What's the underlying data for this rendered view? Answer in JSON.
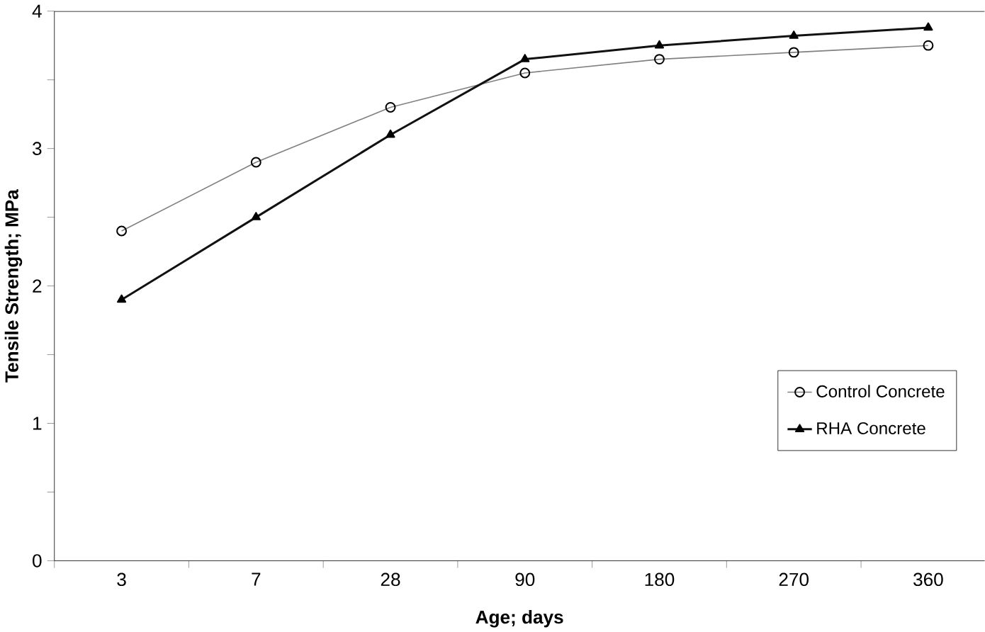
{
  "chart_data": {
    "type": "line",
    "xlabel": "Age; days",
    "ylabel": "Tensile Strength; MPa",
    "categories": [
      "3",
      "7",
      "28",
      "90",
      "180",
      "270",
      "360"
    ],
    "series": [
      {
        "name": "Control Concrete",
        "color": "#808080",
        "marker": "circle",
        "values": [
          2.4,
          2.9,
          3.3,
          3.55,
          3.65,
          3.7,
          3.75
        ]
      },
      {
        "name": "RHA Concrete",
        "color": "#111111",
        "marker": "triangle",
        "values": [
          1.9,
          2.5,
          3.1,
          3.65,
          3.75,
          3.82,
          3.88
        ]
      }
    ],
    "ylim": [
      0,
      4
    ],
    "yticks": [
      0,
      {
        "value": 0.5,
        "label": null
      },
      1,
      {
        "value": 1.5,
        "label": null
      },
      2,
      {
        "value": 2.5,
        "label": null
      },
      3,
      {
        "value": 3.5,
        "label": null
      },
      4
    ],
    "grid": false,
    "legend": "right",
    "line_style": "solid"
  }
}
